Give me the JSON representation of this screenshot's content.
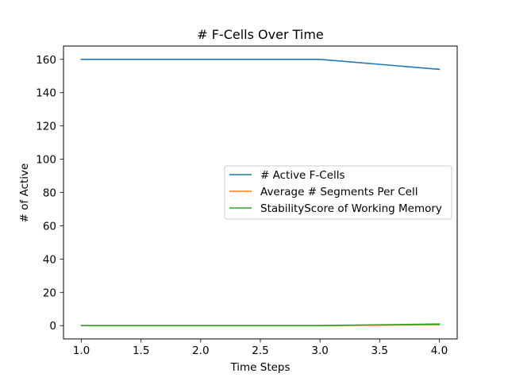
{
  "chart_data": {
    "type": "line",
    "title": "# F-Cells Over Time",
    "xlabel": "Time Steps",
    "ylabel": "# of Active",
    "x": [
      1.0,
      2.0,
      3.0,
      4.0
    ],
    "xlim": [
      0.85,
      4.15
    ],
    "ylim": [
      -8,
      168
    ],
    "xticks": [
      1.0,
      1.5,
      2.0,
      2.5,
      3.0,
      3.5,
      4.0
    ],
    "xtick_labels": [
      "1.0",
      "1.5",
      "2.0",
      "2.5",
      "3.0",
      "3.5",
      "4.0"
    ],
    "yticks": [
      0,
      20,
      40,
      60,
      80,
      100,
      120,
      140,
      160
    ],
    "ytick_labels": [
      "0",
      "20",
      "40",
      "60",
      "80",
      "100",
      "120",
      "140",
      "160"
    ],
    "grid": false,
    "legend_position": "center-right",
    "series": [
      {
        "name": "# Active F-Cells",
        "values": [
          160,
          160,
          160,
          154
        ],
        "color": "#1f77b4"
      },
      {
        "name": "Average # Segments Per Cell",
        "values": [
          0,
          0,
          0,
          0.5
        ],
        "color": "#ff7f0e"
      },
      {
        "name": "StabilityScore of Working Memory",
        "values": [
          0,
          0,
          0,
          1
        ],
        "color": "#2ca02c"
      }
    ]
  }
}
